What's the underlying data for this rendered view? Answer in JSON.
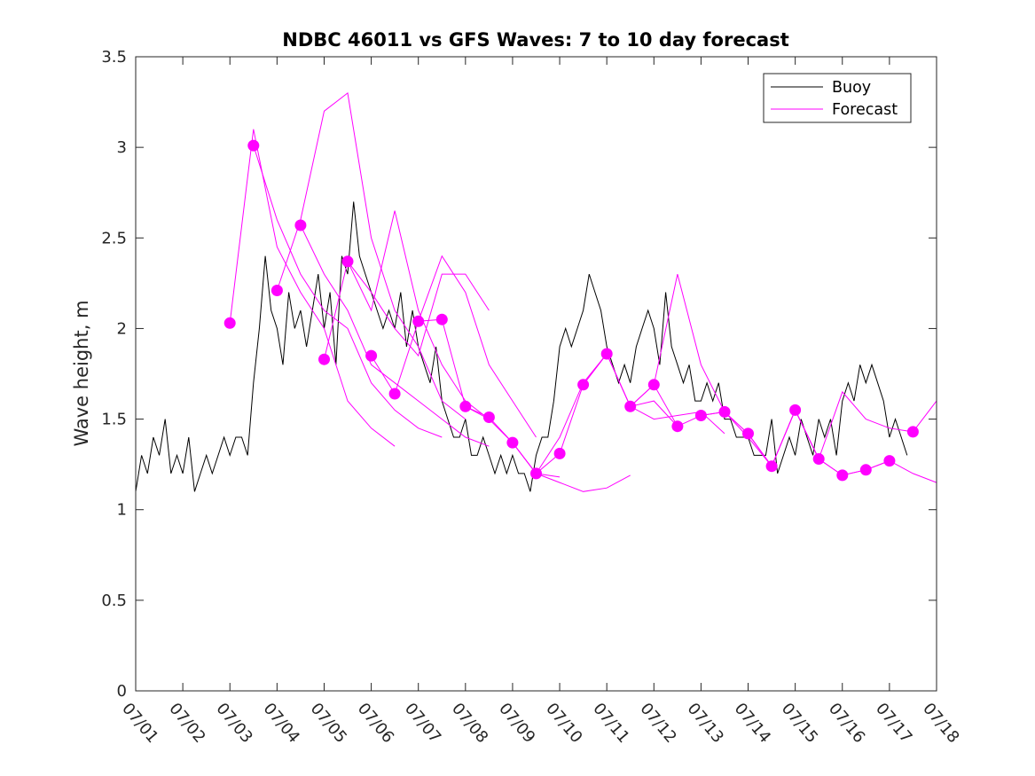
{
  "chart_data": {
    "type": "line",
    "title": "NDBC 46011 vs GFS Waves: 7 to 10 day forecast",
    "xlabel": "",
    "ylabel": "Wave height, m",
    "xlim": [
      "07/01",
      "07/18"
    ],
    "ylim": [
      0,
      3.5
    ],
    "x_ticks": [
      "07/01",
      "07/02",
      "07/03",
      "07/04",
      "07/05",
      "07/06",
      "07/07",
      "07/08",
      "07/09",
      "07/10",
      "07/11",
      "07/12",
      "07/13",
      "07/14",
      "07/15",
      "07/16",
      "07/17",
      "07/18"
    ],
    "y_ticks": [
      "0",
      "0.5",
      "1",
      "1.5",
      "2",
      "2.5",
      "3",
      "3.5"
    ],
    "legend": {
      "position": "top-right",
      "entries": [
        "Buoy",
        "Forecast"
      ]
    },
    "colors": {
      "buoy": "#000000",
      "forecast": "#ff00ff"
    },
    "buoy": {
      "name": "Buoy",
      "x": [
        "07/01 00:00",
        "07/01 03:00",
        "07/01 06:00",
        "07/01 09:00",
        "07/01 12:00",
        "07/01 15:00",
        "07/01 18:00",
        "07/01 21:00",
        "07/02 00:00",
        "07/02 03:00",
        "07/02 06:00",
        "07/02 09:00",
        "07/02 12:00",
        "07/02 15:00",
        "07/02 18:00",
        "07/02 21:00",
        "07/03 00:00",
        "07/03 03:00",
        "07/03 06:00",
        "07/03 09:00",
        "07/03 12:00",
        "07/03 15:00",
        "07/03 18:00",
        "07/03 21:00",
        "07/04 00:00",
        "07/04 03:00",
        "07/04 06:00",
        "07/04 09:00",
        "07/04 12:00",
        "07/04 15:00",
        "07/04 18:00",
        "07/04 21:00",
        "07/05 00:00",
        "07/05 03:00",
        "07/05 06:00",
        "07/05 09:00",
        "07/05 12:00",
        "07/05 15:00",
        "07/05 18:00",
        "07/05 21:00",
        "07/06 00:00",
        "07/06 03:00",
        "07/06 06:00",
        "07/06 09:00",
        "07/06 12:00",
        "07/06 15:00",
        "07/06 18:00",
        "07/06 21:00",
        "07/07 00:00",
        "07/07 03:00",
        "07/07 06:00",
        "07/07 09:00",
        "07/07 12:00",
        "07/07 15:00",
        "07/07 18:00",
        "07/07 21:00",
        "07/08 00:00",
        "07/08 03:00",
        "07/08 06:00",
        "07/08 09:00",
        "07/08 12:00",
        "07/08 15:00",
        "07/08 18:00",
        "07/08 21:00",
        "07/09 00:00",
        "07/09 03:00",
        "07/09 06:00",
        "07/09 09:00",
        "07/09 12:00",
        "07/09 15:00",
        "07/09 18:00",
        "07/09 21:00",
        "07/10 00:00",
        "07/10 03:00",
        "07/10 06:00",
        "07/10 09:00",
        "07/10 12:00",
        "07/10 15:00",
        "07/10 18:00",
        "07/10 21:00",
        "07/11 00:00",
        "07/11 03:00",
        "07/11 06:00",
        "07/11 09:00",
        "07/11 12:00",
        "07/11 15:00",
        "07/11 18:00",
        "07/11 21:00",
        "07/12 00:00",
        "07/12 03:00",
        "07/12 06:00",
        "07/12 09:00",
        "07/12 12:00",
        "07/12 15:00",
        "07/12 18:00",
        "07/12 21:00",
        "07/13 00:00",
        "07/13 03:00",
        "07/13 06:00",
        "07/13 09:00",
        "07/13 12:00",
        "07/13 15:00",
        "07/13 18:00",
        "07/13 21:00",
        "07/14 00:00",
        "07/14 03:00",
        "07/14 06:00",
        "07/14 09:00",
        "07/14 12:00",
        "07/14 15:00",
        "07/14 18:00",
        "07/14 21:00",
        "07/15 00:00",
        "07/15 03:00",
        "07/15 06:00",
        "07/15 09:00",
        "07/15 12:00",
        "07/15 15:00",
        "07/15 18:00",
        "07/15 21:00",
        "07/16 00:00",
        "07/16 03:00",
        "07/16 06:00",
        "07/16 09:00",
        "07/16 12:00",
        "07/16 15:00",
        "07/16 18:00",
        "07/16 21:00",
        "07/17 00:00",
        "07/17 03:00",
        "07/17 06:00",
        "07/17 09:00"
      ],
      "y": [
        1.1,
        1.3,
        1.2,
        1.4,
        1.3,
        1.5,
        1.2,
        1.3,
        1.2,
        1.4,
        1.1,
        1.2,
        1.3,
        1.2,
        1.3,
        1.4,
        1.3,
        1.4,
        1.4,
        1.3,
        1.7,
        2.0,
        2.4,
        2.1,
        2.0,
        1.8,
        2.2,
        2.0,
        2.1,
        1.9,
        2.1,
        2.3,
        2.0,
        2.2,
        1.8,
        2.4,
        2.3,
        2.7,
        2.4,
        2.3,
        2.2,
        2.1,
        2.0,
        2.1,
        2.0,
        2.2,
        1.9,
        2.1,
        1.9,
        1.8,
        1.7,
        1.9,
        1.6,
        1.5,
        1.4,
        1.4,
        1.5,
        1.3,
        1.3,
        1.4,
        1.3,
        1.2,
        1.3,
        1.2,
        1.3,
        1.2,
        1.2,
        1.1,
        1.3,
        1.4,
        1.4,
        1.6,
        1.9,
        2.0,
        1.9,
        2.0,
        2.1,
        2.3,
        2.2,
        2.1,
        1.9,
        1.8,
        1.7,
        1.8,
        1.7,
        1.9,
        2.0,
        2.1,
        2.0,
        1.8,
        2.2,
        1.9,
        1.8,
        1.7,
        1.8,
        1.6,
        1.6,
        1.7,
        1.6,
        1.7,
        1.5,
        1.5,
        1.4,
        1.4,
        1.4,
        1.3,
        1.3,
        1.3,
        1.5,
        1.2,
        1.3,
        1.4,
        1.3,
        1.5,
        1.4,
        1.3,
        1.5,
        1.4,
        1.5,
        1.3,
        1.6,
        1.7,
        1.6,
        1.8,
        1.7,
        1.8,
        1.7,
        1.6,
        1.4,
        1.5,
        1.4,
        1.3
      ]
    },
    "forecast_runs": [
      {
        "x": [
          "07/03 00:00",
          "07/03 12:00",
          "07/04 00:00",
          "07/04 12:00",
          "07/05 00:00",
          "07/05 12:00",
          "07/06 00:00",
          "07/06 12:00"
        ],
        "y": [
          2.03,
          3.1,
          2.45,
          2.2,
          2.0,
          1.6,
          1.45,
          1.35
        ]
      },
      {
        "x": [
          "07/03 12:00",
          "07/04 00:00",
          "07/04 12:00",
          "07/05 00:00",
          "07/05 12:00",
          "07/06 00:00",
          "07/06 12:00",
          "07/07 00:00",
          "07/07 12:00"
        ],
        "y": [
          3.01,
          2.6,
          2.3,
          2.1,
          2.0,
          1.7,
          1.55,
          1.45,
          1.4
        ]
      },
      {
        "x": [
          "07/04 00:00",
          "07/04 12:00",
          "07/05 00:00",
          "07/05 12:00",
          "07/06 00:00",
          "07/06 12:00",
          "07/07 00:00",
          "07/07 12:00",
          "07/08 00:00"
        ],
        "y": [
          2.21,
          2.6,
          3.2,
          3.3,
          2.5,
          2.1,
          1.9,
          1.6,
          1.5
        ]
      },
      {
        "x": [
          "07/04 12:00",
          "07/05 00:00",
          "07/05 12:00",
          "07/06 00:00",
          "07/06 12:00",
          "07/07 00:00",
          "07/07 12:00",
          "07/08 00:00",
          "07/08 12:00"
        ],
        "y": [
          2.57,
          2.3,
          2.1,
          1.8,
          1.7,
          1.6,
          1.5,
          1.4,
          1.35
        ]
      },
      {
        "x": [
          "07/05 00:00",
          "07/05 12:00",
          "07/06 00:00",
          "07/06 12:00",
          "07/07 00:00",
          "07/07 12:00",
          "07/08 00:00",
          "07/08 12:00"
        ],
        "y": [
          1.83,
          2.37,
          2.1,
          2.65,
          2.1,
          1.8,
          1.6,
          1.5
        ]
      },
      {
        "x": [
          "07/05 12:00",
          "07/06 00:00",
          "07/06 12:00",
          "07/07 00:00",
          "07/07 12:00",
          "07/08 00:00",
          "07/08 12:00"
        ],
        "y": [
          2.37,
          2.2,
          2.0,
          1.85,
          2.3,
          2.3,
          2.1
        ]
      },
      {
        "x": [
          "07/06 00:00",
          "07/06 12:00",
          "07/07 00:00",
          "07/07 12:00",
          "07/08 00:00",
          "07/08 12:00",
          "07/09 00:00",
          "07/09 12:00"
        ],
        "y": [
          1.85,
          1.64,
          2.04,
          2.4,
          2.2,
          1.8,
          1.6,
          1.4
        ]
      },
      {
        "x": [
          "07/07 00:00",
          "07/07 12:00",
          "07/08 00:00",
          "07/08 12:00",
          "07/09 00:00",
          "07/09 12:00",
          "07/10 00:00"
        ],
        "y": [
          2.04,
          2.05,
          1.57,
          1.5,
          1.37,
          1.2,
          1.18
        ]
      },
      {
        "x": [
          "07/08 00:00",
          "07/08 12:00",
          "07/09 00:00",
          "07/09 12:00",
          "07/10 00:00",
          "07/10 12:00",
          "07/11 00:00",
          "07/11 12:00"
        ],
        "y": [
          1.57,
          1.51,
          1.37,
          1.2,
          1.15,
          1.1,
          1.12,
          1.19
        ]
      },
      {
        "x": [
          "07/09 00:00",
          "07/09 12:00",
          "07/10 00:00",
          "07/10 12:00",
          "07/11 00:00",
          "07/11 12:00",
          "07/12 00:00",
          "07/12 12:00"
        ],
        "y": [
          1.37,
          1.2,
          1.31,
          1.69,
          1.86,
          1.57,
          1.69,
          1.46
        ]
      },
      {
        "x": [
          "07/09 12:00",
          "07/10 00:00",
          "07/10 12:00",
          "07/11 00:00",
          "07/11 12:00",
          "07/12 00:00",
          "07/12 12:00",
          "07/13 00:00",
          "07/13 12:00"
        ],
        "y": [
          1.2,
          1.4,
          1.7,
          1.86,
          1.57,
          1.5,
          1.52,
          1.54,
          1.42
        ]
      },
      {
        "x": [
          "07/10 12:00",
          "07/11 00:00",
          "07/11 12:00",
          "07/12 00:00",
          "07/12 12:00",
          "07/13 00:00",
          "07/13 12:00",
          "07/14 00:00",
          "07/14 12:00"
        ],
        "y": [
          1.69,
          1.86,
          1.57,
          1.69,
          2.3,
          1.8,
          1.54,
          1.42,
          1.24
        ]
      },
      {
        "x": [
          "07/11 12:00",
          "07/12 00:00",
          "07/12 12:00",
          "07/13 00:00",
          "07/13 12:00",
          "07/14 00:00",
          "07/14 12:00",
          "07/15 00:00",
          "07/15 12:00"
        ],
        "y": [
          1.57,
          1.6,
          1.46,
          1.52,
          1.54,
          1.4,
          1.24,
          1.55,
          1.28
        ]
      },
      {
        "x": [
          "07/13 00:00",
          "07/13 12:00",
          "07/14 00:00",
          "07/14 12:00",
          "07/15 00:00",
          "07/15 12:00",
          "07/16 00:00",
          "07/16 12:00",
          "07/17 00:00"
        ],
        "y": [
          1.52,
          1.54,
          1.42,
          1.24,
          1.55,
          1.28,
          1.19,
          1.22,
          1.27
        ]
      },
      {
        "x": [
          "07/14 00:00",
          "07/14 12:00",
          "07/15 00:00",
          "07/15 12:00",
          "07/16 00:00",
          "07/16 12:00",
          "07/17 00:00",
          "07/17 12:00",
          "07/18 00:00"
        ],
        "y": [
          1.42,
          1.24,
          1.55,
          1.28,
          1.65,
          1.5,
          1.45,
          1.43,
          1.6
        ]
      },
      {
        "x": [
          "07/15 00:00",
          "07/15 12:00",
          "07/16 00:00",
          "07/16 12:00",
          "07/17 00:00",
          "07/17 12:00",
          "07/18 00:00"
        ],
        "y": [
          1.55,
          1.28,
          1.19,
          1.22,
          1.27,
          1.2,
          1.15
        ]
      }
    ],
    "forecast_markers": {
      "x": [
        "07/03 00:00",
        "07/03 12:00",
        "07/04 00:00",
        "07/04 12:00",
        "07/05 00:00",
        "07/05 12:00",
        "07/06 00:00",
        "07/06 12:00",
        "07/07 00:00",
        "07/07 12:00",
        "07/08 00:00",
        "07/08 12:00",
        "07/09 00:00",
        "07/09 12:00",
        "07/10 00:00",
        "07/10 12:00",
        "07/11 00:00",
        "07/11 12:00",
        "07/12 00:00",
        "07/12 12:00",
        "07/13 00:00",
        "07/13 12:00",
        "07/14 00:00",
        "07/14 12:00",
        "07/15 00:00",
        "07/15 12:00",
        "07/16 00:00",
        "07/16 12:00",
        "07/17 00:00",
        "07/17 12:00"
      ],
      "y": [
        2.03,
        3.01,
        2.21,
        2.57,
        1.83,
        2.37,
        1.85,
        1.64,
        2.04,
        2.05,
        1.57,
        1.51,
        1.37,
        1.2,
        1.31,
        1.69,
        1.86,
        1.57,
        1.69,
        1.46,
        1.52,
        1.54,
        1.42,
        1.24,
        1.55,
        1.28,
        1.19,
        1.22,
        1.27,
        1.43
      ]
    }
  }
}
